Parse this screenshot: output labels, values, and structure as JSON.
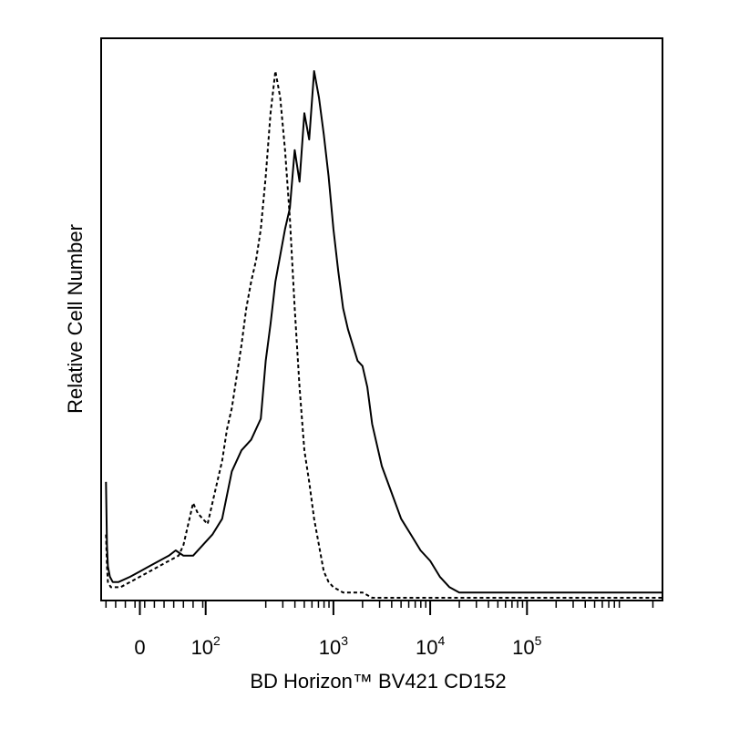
{
  "chart_data": {
    "type": "line",
    "title": "",
    "xlabel": "BD Horizon™ BV421 CD152",
    "ylabel": "Relative Cell Number",
    "xscale": "biexponential (linear near 0, log above ~10^2)",
    "xlim_decades": [
      -0.4,
      5.4
    ],
    "ylim": [
      0,
      100
    ],
    "grid": false,
    "legend": "none",
    "x_ticks": [
      {
        "label": "0"
      },
      {
        "label": "10",
        "exponent": "2"
      },
      {
        "label": "10",
        "exponent": "3"
      },
      {
        "label": "10",
        "exponent": "4"
      },
      {
        "label": "10",
        "exponent": "5"
      }
    ],
    "series": [
      {
        "style": "solid",
        "color": "#000000",
        "x": [
          -0.35,
          -0.34,
          -0.33,
          -0.31,
          -0.28,
          -0.22,
          -0.1,
          0.0,
          0.1,
          0.2,
          0.3,
          0.37,
          0.45,
          0.55,
          0.65,
          0.75,
          0.85,
          0.95,
          1.05,
          1.15,
          1.25,
          1.3,
          1.35,
          1.4,
          1.45,
          1.5,
          1.55,
          1.6,
          1.65,
          1.7,
          1.75,
          1.8,
          1.85,
          1.9,
          1.95,
          2.0,
          2.05,
          2.1,
          2.15,
          2.2,
          2.25,
          2.3,
          2.35,
          2.4,
          2.5,
          2.6,
          2.7,
          2.8,
          2.9,
          3.0,
          3.1,
          3.15,
          3.2,
          3.3,
          3.4,
          3.5,
          3.6,
          3.7,
          3.8,
          3.9,
          4.0,
          4.1,
          4.2,
          4.4,
          4.6,
          4.8,
          5.0,
          5.2,
          5.4
        ],
        "y": [
          22,
          10,
          6,
          4,
          3,
          3,
          4,
          5,
          6,
          7,
          8,
          9,
          8,
          8,
          10,
          12,
          15,
          24,
          28,
          30,
          34,
          45,
          52,
          60,
          65,
          70,
          74,
          85,
          79,
          92,
          87,
          100,
          95,
          88,
          80,
          70,
          62,
          55,
          51,
          48,
          45,
          44,
          40,
          33,
          25,
          20,
          15,
          12,
          9,
          7,
          4,
          3,
          2,
          1,
          1,
          1,
          1,
          1,
          1,
          1,
          1,
          1,
          1,
          1,
          1,
          1,
          1,
          1,
          1
        ]
      },
      {
        "style": "dashed",
        "color": "#000000",
        "x": [
          -0.35,
          -0.34,
          -0.33,
          -0.3,
          -0.25,
          -0.2,
          -0.1,
          0.0,
          0.1,
          0.2,
          0.3,
          0.4,
          0.45,
          0.5,
          0.55,
          0.6,
          0.7,
          0.8,
          0.85,
          0.9,
          0.95,
          1.0,
          1.05,
          1.1,
          1.15,
          1.2,
          1.25,
          1.3,
          1.35,
          1.4,
          1.45,
          1.5,
          1.55,
          1.6,
          1.65,
          1.7,
          1.75,
          1.8,
          1.85,
          1.9,
          1.95,
          2.0,
          2.1,
          2.2,
          2.3,
          2.4,
          2.6,
          2.8,
          3.0,
          3.2,
          3.4,
          3.6,
          4.0,
          4.4,
          4.8,
          5.2,
          5.4
        ],
        "y": [
          12,
          6,
          3,
          2,
          2,
          2,
          3,
          4,
          5,
          6,
          7,
          8,
          10,
          14,
          18,
          16,
          14,
          22,
          26,
          32,
          36,
          42,
          48,
          55,
          60,
          64,
          70,
          80,
          92,
          100,
          95,
          85,
          72,
          55,
          40,
          28,
          22,
          15,
          10,
          5,
          3,
          2,
          1,
          1,
          1,
          0,
          0,
          0,
          0,
          0,
          0,
          0,
          0,
          0,
          0,
          0,
          0
        ]
      }
    ]
  }
}
